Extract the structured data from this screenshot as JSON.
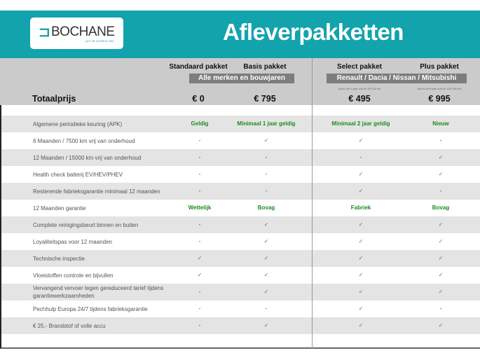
{
  "header": {
    "logo_text": "BOCHANE",
    "logo_tagline": "ALS JE VOORUIT WIL",
    "title": "Afleverpakketten"
  },
  "packages": [
    {
      "name": "Standaard pakket",
      "price": "€ 0"
    },
    {
      "name": "Basis pakket",
      "price": "€ 795"
    },
    {
      "name": "Select pakket",
      "price": "€ 495",
      "note": "Auto's tot 1 jaar oud en 20.000 km"
    },
    {
      "name": "Plus pakket",
      "price": "€ 995",
      "note": "Auto's tot 5 jaar oud en 100.000 km"
    }
  ],
  "bands": {
    "left": "Alle merken en bouwjaren",
    "right": "Renault / Dacia / Nissan / Mitsubishi"
  },
  "total_label": "Totaalprijs",
  "colors": {
    "teal": "#12a3ad",
    "green": "#1b8c1b"
  },
  "rows": [
    {
      "label": "Algemene periodieke keuring (APK)",
      "values": [
        "Geldig",
        "Minimaal 1 jaar geldig",
        "Minimaal 2 jaar geldig",
        "Nieuw"
      ]
    },
    {
      "label": "6 Maanden / 7500 km vrij van onderhoud",
      "values": [
        "-",
        "✓",
        "✓",
        "-"
      ]
    },
    {
      "label": "12 Maanden / 15000 km vrij van onderhoud",
      "values": [
        "-",
        "-",
        "-",
        "✓"
      ]
    },
    {
      "label": "Health check batterij EV/HEV/PHEV",
      "values": [
        "-",
        "-",
        "✓",
        "✓"
      ]
    },
    {
      "label": "Resterende fabrieksgarantie minimaal 12 maanden",
      "values": [
        "-",
        "-",
        "✓",
        "-"
      ]
    },
    {
      "label": "12 Maanden  garantie",
      "values": [
        "Wettelijk",
        "Bovag",
        "Fabriek",
        "Bovag"
      ]
    },
    {
      "label": "Complete reinigingsbeurt binnen en buiten",
      "values": [
        "-",
        "✓",
        "✓",
        "✓"
      ]
    },
    {
      "label": "Loyaliteitspas voor 12 maanden",
      "values": [
        "-",
        "✓",
        "✓",
        "✓"
      ]
    },
    {
      "label": "Technische inspectie",
      "values": [
        "✓",
        "✓",
        "✓",
        "✓"
      ]
    },
    {
      "label": "Vloeistoffen controle en bijvullen",
      "values": [
        "✓",
        "✓",
        "✓",
        "✓"
      ]
    },
    {
      "label": "Vervangend vervoer tegen gereduceerd tarief tijdens garantiewerkzaamheden",
      "values": [
        "-",
        "✓",
        "✓",
        "✓"
      ]
    },
    {
      "label": "Pechhulp Europa 24/7 tijdens fabrieksgarantie",
      "values": [
        "-",
        "-",
        "✓",
        "-"
      ]
    },
    {
      "label": "€ 25,- Brandstof of  volle accu",
      "values": [
        "-",
        "✓",
        "✓",
        "✓"
      ]
    }
  ]
}
